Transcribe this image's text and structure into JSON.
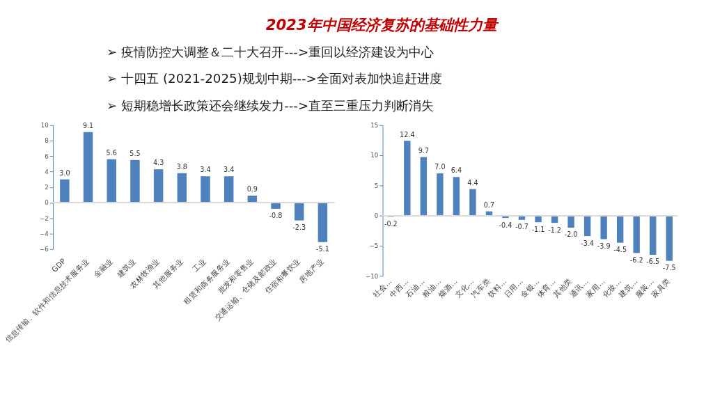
{
  "chart_data": [
    {
      "type": "bar",
      "title": "2023年中国经济复苏的基础性力量",
      "annotations": [
        "➢ 疫情防控大调整＆二十大召开--->重回以经济建设为中心",
        "➢ 十四五 (2021-2025)规划中期--->全面对表加快追赶进度",
        "➢ 短期稳增长政策还会继续发力--->直至三重压力判断消失"
      ],
      "categories": [
        "GDP",
        "信息传输、软件和信息技术服务业",
        "金融业",
        "建筑业",
        "农林牧渔业",
        "其他服务业",
        "工业",
        "租赁和商务服务业",
        "批发和零售业",
        "交通运输、仓储及邮政业",
        "住宿和餐饮业",
        "房地产业"
      ],
      "values": [
        3.0,
        9.1,
        5.6,
        5.5,
        4.3,
        3.8,
        3.4,
        3.4,
        0.9,
        -0.8,
        -2.3,
        -5.1
      ],
      "value_labels": [
        "3.0",
        "9.1",
        "5.6",
        "5.5",
        "4.3",
        "3.8",
        "3.4",
        "3.4",
        "0.9",
        "-0.8",
        "-2.3",
        "-5.1"
      ],
      "color": "#4f81bd",
      "ylim": [
        -6,
        10
      ],
      "yticks": [
        -6,
        -4,
        -2,
        0,
        2,
        4,
        6,
        8,
        10
      ],
      "ref_lines": [
        {
          "axis": "y",
          "value": 0,
          "color": "#d9d9d9"
        }
      ]
    },
    {
      "type": "bar",
      "categories": [
        "社会…",
        "中西…",
        "石油…",
        "粮油…",
        "烟酒…",
        "文化…",
        "汽车类",
        "饮料…",
        "日用…",
        "金银…",
        "体育…",
        "其他类",
        "通讯…",
        "家用…",
        "化妆…",
        "建筑…",
        "服装…",
        "家具类"
      ],
      "values": [
        -0.2,
        12.4,
        9.7,
        7.0,
        6.4,
        4.4,
        0.7,
        -0.4,
        -0.7,
        -1.1,
        -1.2,
        -2.0,
        -3.4,
        -3.9,
        -4.5,
        -6.2,
        -6.5,
        -7.5
      ],
      "value_labels": [
        "-0.2",
        "12.4",
        "9.7",
        "7.0",
        "6.4",
        "4.4",
        "0.7",
        "-0.4",
        "-0.7",
        "-1.1",
        "-1.2",
        "-2.0",
        "-3.4",
        "-3.9",
        "-4.5",
        "-6.2",
        "-6.5",
        "-7.5"
      ],
      "color": "#4f81bd",
      "ylim": [
        -10,
        15
      ],
      "yticks": [
        -10,
        -5,
        0,
        5,
        10,
        15
      ],
      "ref_lines": [
        {
          "axis": "y",
          "value": 0,
          "color": "#d9d9d9"
        }
      ]
    }
  ]
}
